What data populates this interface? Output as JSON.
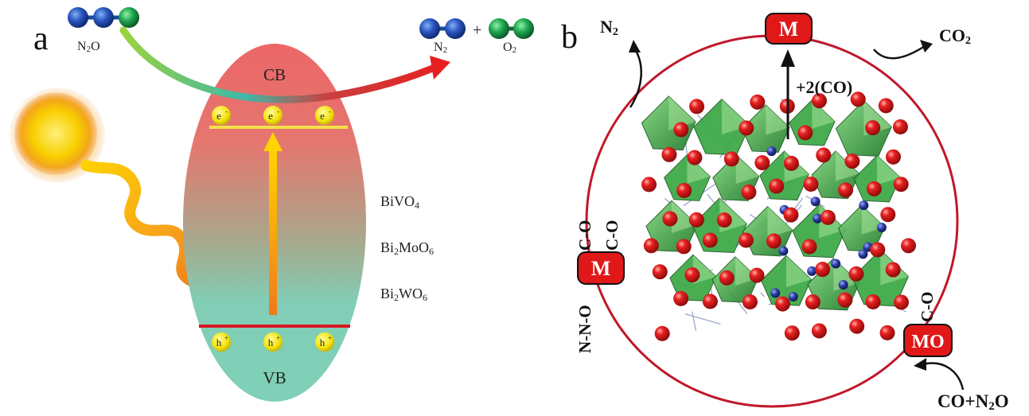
{
  "panel_a": {
    "label": "a",
    "reactant": {
      "label_main": "N",
      "label_sub": "2",
      "label_tail": "O"
    },
    "products": {
      "n2": {
        "label_main": "N",
        "label_sub": "2"
      },
      "plus": "+",
      "o2": {
        "label_main": "O",
        "label_sub": "2"
      }
    },
    "cb_label": "CB",
    "vb_label": "VB",
    "electron": "e",
    "electron_sign": "-",
    "hole": "h",
    "hole_sign": "+",
    "materials": [
      {
        "parts": [
          "BiVO",
          "4"
        ]
      },
      {
        "parts": [
          "Bi",
          "2",
          "MoO",
          "6"
        ]
      },
      {
        "parts": [
          "Bi",
          "2",
          "WO",
          "6"
        ]
      }
    ],
    "colors": {
      "cb": "#e8686a",
      "vb": "#7ecfb6",
      "nitrogen": "#1d3fa0",
      "oxygen": "#1e9a4a",
      "sun": "#f6c200",
      "arrow_red": "#e02020"
    }
  },
  "panel_b": {
    "label": "b",
    "metal_top": "M",
    "metal_left": "M",
    "metal_oxide": "MO",
    "co_add": "+2(CO)",
    "n2": {
      "label_main": "N",
      "label_sub": "2"
    },
    "co2": {
      "label_main": "CO",
      "label_sub": "2"
    },
    "feed": {
      "label_main": "CO+N",
      "label_sub": "2",
      "label_tail": "O"
    },
    "adsorbate_left_1": "C-O",
    "adsorbate_left_2": "C-O",
    "adsorbate_left_3": "N-N-O",
    "adsorbate_right": "C-O",
    "colors": {
      "ring": "#c0182a",
      "badge": "#e01818",
      "polyhedra": "#2e9a3a",
      "atom_o": "#d81818",
      "atom_metal": "#2a3aa0"
    }
  }
}
